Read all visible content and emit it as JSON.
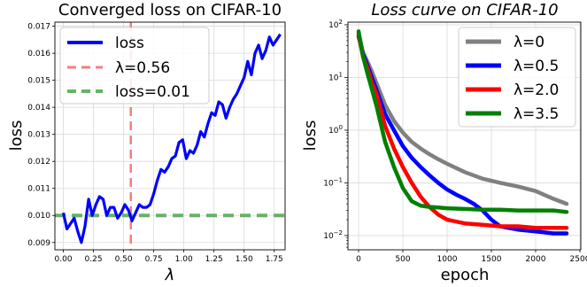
{
  "chart_data": [
    {
      "type": "line",
      "title": "Converged loss on CIFAR-10",
      "xlabel": "λ",
      "ylabel": "loss",
      "xlim": [
        -0.07,
        1.84
      ],
      "ylim": [
        0.00873,
        0.01715
      ],
      "xticks": [
        "0.00",
        "0.25",
        "0.50",
        "0.75",
        "1.00",
        "1.25",
        "1.50",
        "1.75"
      ],
      "yticks": [
        "0.009",
        "0.010",
        "0.011",
        "0.012",
        "0.013",
        "0.014",
        "0.015",
        "0.016",
        "0.017"
      ],
      "grid": true,
      "legend_position": "top-left",
      "series": [
        {
          "name": "loss",
          "color": "#0000ff",
          "x": [
            0.0,
            0.03,
            0.06,
            0.09,
            0.12,
            0.15,
            0.18,
            0.21,
            0.24,
            0.27,
            0.3,
            0.33,
            0.36,
            0.39,
            0.42,
            0.45,
            0.48,
            0.51,
            0.54,
            0.57,
            0.6,
            0.63,
            0.66,
            0.69,
            0.72,
            0.75,
            0.78,
            0.81,
            0.84,
            0.87,
            0.9,
            0.93,
            0.96,
            0.99,
            1.02,
            1.05,
            1.08,
            1.11,
            1.14,
            1.17,
            1.2,
            1.23,
            1.26,
            1.29,
            1.32,
            1.35,
            1.38,
            1.41,
            1.44,
            1.47,
            1.5,
            1.53,
            1.56,
            1.59,
            1.62,
            1.65,
            1.68,
            1.71,
            1.74,
            1.77,
            1.8
          ],
          "y": [
            0.0101,
            0.0095,
            0.0097,
            0.0099,
            0.0094,
            0.009,
            0.0096,
            0.0106,
            0.01,
            0.0104,
            0.0107,
            0.0106,
            0.01,
            0.0103,
            0.0103,
            0.0099,
            0.0101,
            0.0104,
            0.0102,
            0.0098,
            0.0101,
            0.0104,
            0.0103,
            0.0103,
            0.0104,
            0.0108,
            0.0113,
            0.0117,
            0.0116,
            0.0118,
            0.0121,
            0.0122,
            0.0127,
            0.0128,
            0.0121,
            0.0124,
            0.0123,
            0.0126,
            0.0131,
            0.0129,
            0.0134,
            0.0138,
            0.0137,
            0.0142,
            0.0141,
            0.0136,
            0.014,
            0.0143,
            0.0145,
            0.0148,
            0.0151,
            0.0157,
            0.0152,
            0.016,
            0.0163,
            0.0158,
            0.0161,
            0.0166,
            0.0163,
            0.0165,
            0.0167
          ]
        }
      ],
      "reference_lines": [
        {
          "name": "λ=0.56",
          "orientation": "vertical",
          "value": 0.56,
          "color": "#f08080",
          "style": "dashed"
        },
        {
          "name": "loss=0.01",
          "orientation": "horizontal",
          "value": 0.01,
          "color": "#66b266",
          "style": "dashed"
        }
      ]
    },
    {
      "type": "line",
      "title": "Loss curve on CIFAR-10",
      "xlabel": "epoch",
      "ylabel": "loss",
      "xlim": [
        -120,
        2510
      ],
      "ylim_log10": [
        -2.27,
        2.05
      ],
      "yscale": "log",
      "xticks": [
        "0",
        "500",
        "1000",
        "1500",
        "2000",
        "2500"
      ],
      "yticks": [
        "10^-2",
        "10^-1",
        "10^0",
        "10^1",
        "10^2"
      ],
      "grid": true,
      "legend_position": "top-right",
      "series": [
        {
          "name": "λ=0",
          "color": "#808080",
          "x": [
            0,
            50,
            100,
            150,
            200,
            300,
            400,
            500,
            600,
            700,
            800,
            900,
            1000,
            1200,
            1400,
            1600,
            1800,
            2000,
            2200,
            2350
          ],
          "y": [
            70,
            30,
            20,
            13,
            8,
            3.0,
            1.5,
            0.9,
            0.6,
            0.45,
            0.35,
            0.28,
            0.23,
            0.16,
            0.12,
            0.1,
            0.085,
            0.07,
            0.05,
            0.04
          ]
        },
        {
          "name": "λ=0.5",
          "color": "#0000ff",
          "x": [
            0,
            50,
            100,
            150,
            200,
            300,
            400,
            500,
            600,
            700,
            800,
            900,
            1000,
            1100,
            1200,
            1300,
            1400,
            1500,
            1600,
            1800,
            2000,
            2200,
            2350
          ],
          "y": [
            60,
            28,
            17,
            10,
            6,
            2.0,
            1.0,
            0.5,
            0.3,
            0.2,
            0.14,
            0.1,
            0.075,
            0.06,
            0.05,
            0.04,
            0.03,
            0.02,
            0.015,
            0.013,
            0.012,
            0.011,
            0.011
          ]
        },
        {
          "name": "λ=2.0",
          "color": "#ff0000",
          "x": [
            0,
            50,
            100,
            150,
            200,
            300,
            400,
            500,
            600,
            700,
            800,
            900,
            1000,
            1200,
            1400,
            1600,
            1800,
            2000,
            2200,
            2350
          ],
          "y": [
            65,
            25,
            15,
            8,
            5,
            1.2,
            0.45,
            0.2,
            0.1,
            0.055,
            0.035,
            0.025,
            0.02,
            0.017,
            0.016,
            0.015,
            0.015,
            0.014,
            0.014,
            0.014
          ]
        },
        {
          "name": "λ=3.5",
          "color": "#008000",
          "x": [
            0,
            50,
            100,
            150,
            200,
            300,
            400,
            500,
            600,
            700,
            800,
            900,
            1000,
            1200,
            1400,
            1600,
            1800,
            2000,
            2200,
            2350
          ],
          "y": [
            75,
            25,
            12,
            6,
            3,
            0.6,
            0.2,
            0.08,
            0.045,
            0.037,
            0.035,
            0.034,
            0.033,
            0.032,
            0.031,
            0.031,
            0.03,
            0.03,
            0.03,
            0.028
          ]
        }
      ]
    }
  ]
}
